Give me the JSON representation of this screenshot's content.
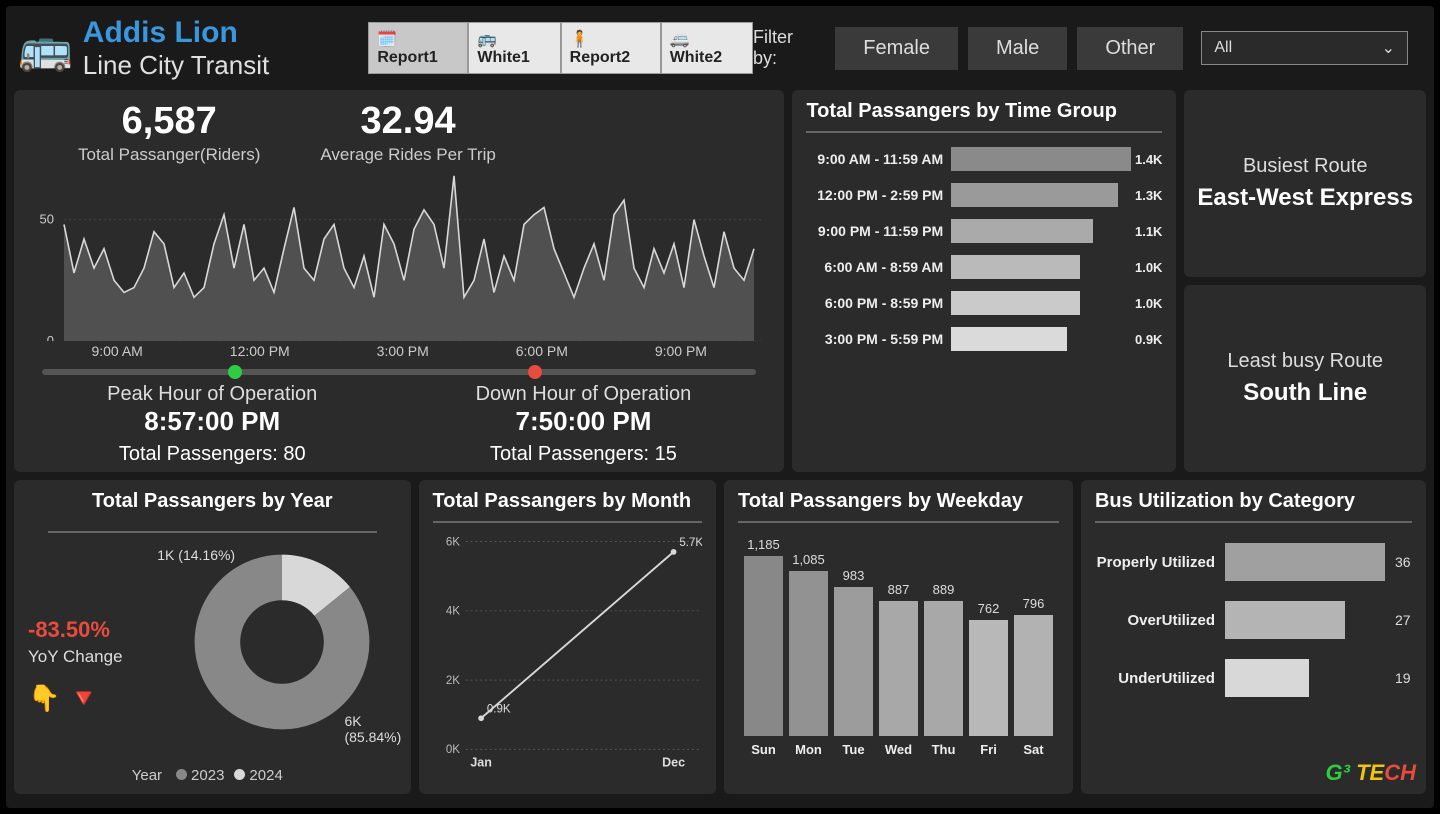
{
  "brand": {
    "title": "Addis Lion",
    "subtitle": "Line City Transit",
    "icon": "🚌"
  },
  "tabs": [
    {
      "icon": "🗓️",
      "label": "Report1"
    },
    {
      "icon": "🚌",
      "label": "White1"
    },
    {
      "icon": "🧍",
      "label": "Report2"
    },
    {
      "icon": "🚐",
      "label": "White2"
    }
  ],
  "filter": {
    "label": "Filter by:",
    "options": [
      "Female",
      "Male",
      "Other"
    ],
    "select_label": "All"
  },
  "kpi": {
    "total_passenger": {
      "value": "6,587",
      "label": "Total Passanger(Riders)"
    },
    "avg_rides": {
      "value": "32.94",
      "label": "Average Rides Per Trip"
    }
  },
  "sparkline": {
    "series": [
      48,
      28,
      42,
      30,
      38,
      25,
      20,
      22,
      30,
      45,
      40,
      22,
      28,
      18,
      22,
      40,
      52,
      30,
      48,
      25,
      30,
      20,
      38,
      55,
      30,
      25,
      42,
      48,
      30,
      22,
      35,
      18,
      48,
      40,
      25,
      46,
      54,
      48,
      30,
      68,
      18,
      25,
      42,
      20,
      35,
      25,
      48,
      52,
      55,
      38,
      28,
      18,
      30,
      40,
      25,
      52,
      58,
      30,
      22,
      38,
      28,
      40,
      22,
      50,
      35,
      22,
      45,
      30,
      25,
      38
    ],
    "ylim": [
      0,
      70
    ],
    "yticks": [
      0,
      50
    ],
    "xticks": [
      "9:00 AM",
      "12:00 PM",
      "3:00 PM",
      "6:00 PM",
      "9:00 PM"
    ],
    "line_color": "#d8d8d8",
    "fill_color": "#707070",
    "grid_color": "#444"
  },
  "slider": {
    "green_pos": 0.26,
    "red_pos": 0.68
  },
  "peak": {
    "label": "Peak Hour of Operation",
    "time": "8:57:00 PM",
    "passengers": "Total Passengers: 80"
  },
  "down": {
    "label": "Down Hour of Operation",
    "time": "7:50:00 PM",
    "passengers": "Total Passengers: 15"
  },
  "time_group": {
    "title": "Total Passangers by Time Group",
    "max": 1400,
    "bars": [
      {
        "label": "9:00 AM - 11:59 AM",
        "display": "1.4K",
        "value": 1400,
        "color": "#8a8a8a"
      },
      {
        "label": "12:00 PM - 2:59 PM",
        "display": "1.3K",
        "value": 1300,
        "color": "#9a9a9a"
      },
      {
        "label": "9:00 PM - 11:59 PM",
        "display": "1.1K",
        "value": 1100,
        "color": "#aaaaaa"
      },
      {
        "label": "6:00 AM - 8:59 AM",
        "display": "1.0K",
        "value": 1000,
        "color": "#bababa"
      },
      {
        "label": "6:00 PM - 8:59 PM",
        "display": "1.0K",
        "value": 1000,
        "color": "#cacaca"
      },
      {
        "label": "3:00 PM - 5:59 PM",
        "display": "0.9K",
        "value": 900,
        "color": "#dadada"
      }
    ]
  },
  "routes": {
    "busiest": {
      "label": "Busiest Route",
      "value": "East-West Express"
    },
    "least": {
      "label": "Least busy Route",
      "value": "South Line"
    }
  },
  "year_chart": {
    "title": "Total Passangers by Year",
    "yoy_pct": "-83.50%",
    "yoy_label": "YoY Change",
    "yoy_icons": "👇 🔻",
    "slices": [
      {
        "year": "2024",
        "label": "1K (14.16%)",
        "pct": 14.16,
        "color": "#d8d8d8"
      },
      {
        "year": "2023",
        "label": "6K\n(85.84%)",
        "pct": 85.84,
        "color": "#888888"
      }
    ],
    "legend_label": "Year",
    "legend": [
      {
        "label": "2023",
        "color": "#888888"
      },
      {
        "label": "2024",
        "color": "#d8d8d8"
      }
    ]
  },
  "month_chart": {
    "title": "Total Passangers by Month",
    "points": [
      {
        "x": "Jan",
        "y": 900,
        "label": "0.9K"
      },
      {
        "x": "Dec",
        "y": 5700,
        "label": "5.7K"
      }
    ],
    "ylim": [
      0,
      6000
    ],
    "yticks": [
      "0K",
      "2K",
      "4K",
      "6K"
    ],
    "line_color": "#d8d8d8",
    "grid_color": "#555"
  },
  "weekday_chart": {
    "title": "Total Passangers by Weekday",
    "max": 1185,
    "bars": [
      {
        "day": "Sun",
        "value": 1185,
        "color": "#888888"
      },
      {
        "day": "Mon",
        "value": 1085,
        "color": "#929292"
      },
      {
        "day": "Tue",
        "value": 983,
        "color": "#9c9c9c"
      },
      {
        "day": "Wed",
        "value": 887,
        "color": "#a8a8a8"
      },
      {
        "day": "Thu",
        "value": 889,
        "color": "#a8a8a8"
      },
      {
        "day": "Fri",
        "value": 762,
        "color": "#b8b8b8"
      },
      {
        "day": "Sat",
        "value": 796,
        "color": "#b2b2b2"
      }
    ]
  },
  "util_chart": {
    "title": "Bus Utilization by Category",
    "max": 36,
    "bars": [
      {
        "label": "Properly Utilized",
        "value": 36,
        "color": "#a0a0a0"
      },
      {
        "label": "OverUtilized",
        "value": 27,
        "color": "#b4b4b4"
      },
      {
        "label": "UnderUtilized",
        "value": 19,
        "color": "#d8d8d8"
      }
    ],
    "logo": "G³ TECH"
  }
}
